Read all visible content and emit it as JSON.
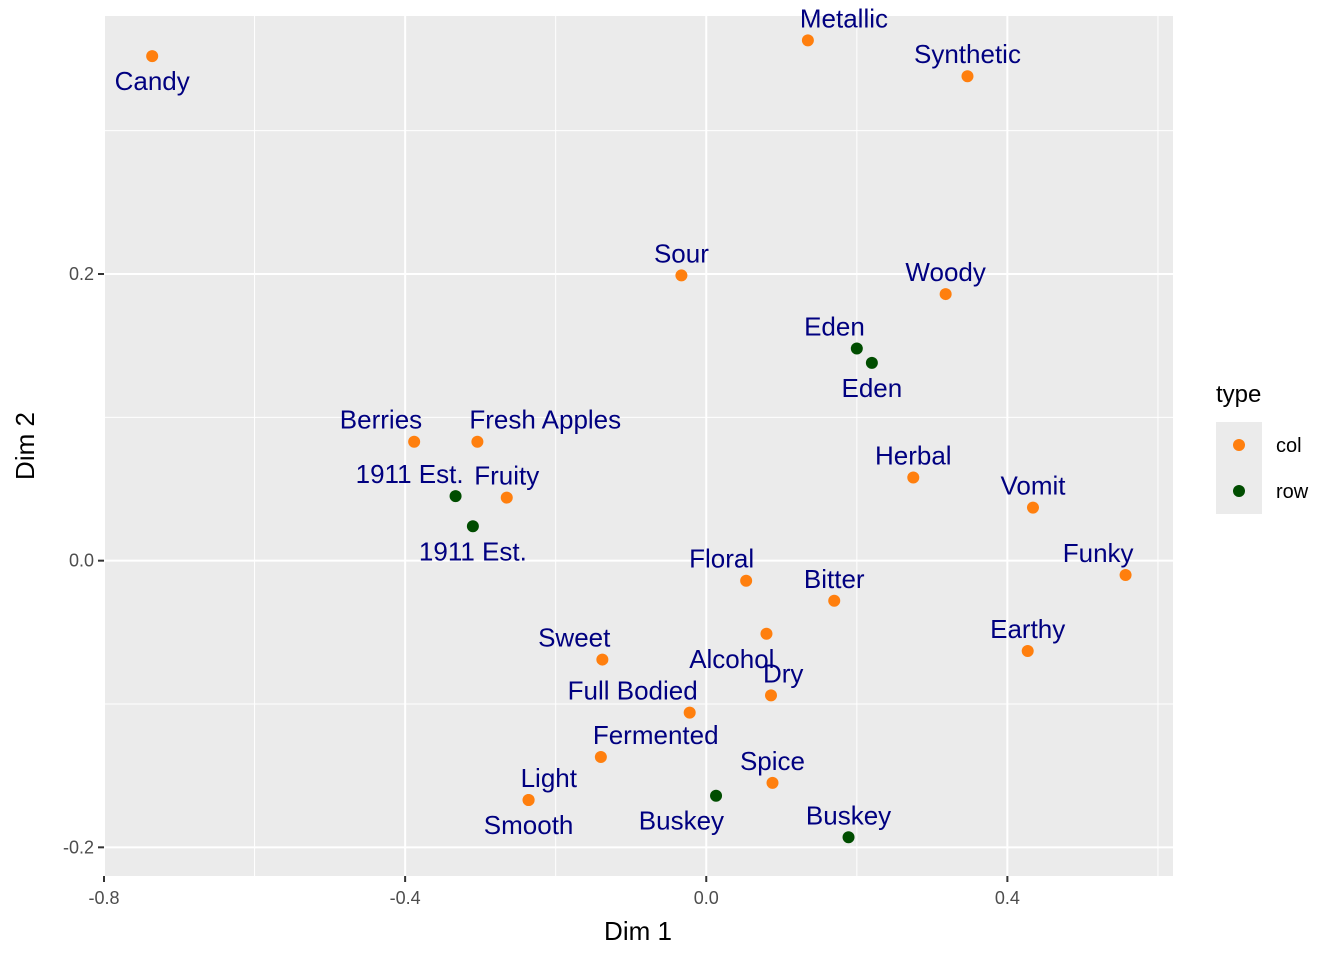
{
  "chart_data": {
    "type": "scatter",
    "xlabel": "Dim 1",
    "ylabel": "Dim 2",
    "xlim": [
      -0.8,
      0.62
    ],
    "ylim": [
      -0.22,
      0.38
    ],
    "x_ticks": [
      -0.8,
      -0.4,
      0.0,
      0.4
    ],
    "x_tick_labels": [
      "-0.8",
      "-0.4",
      "0.0",
      "0.4"
    ],
    "y_ticks": [
      -0.2,
      0.0,
      0.2
    ],
    "y_tick_labels": [
      "-0.2",
      "0.0",
      "0.2"
    ],
    "grid": true,
    "legend": {
      "title": "type",
      "position": "right",
      "entries": [
        {
          "name": "col",
          "color": "#FF7F0E"
        },
        {
          "name": "row",
          "color": "#004D00"
        }
      ]
    },
    "label_color": "#000080",
    "points": [
      {
        "label": "Candy",
        "x": -0.736,
        "y": 0.352,
        "type": "col",
        "label_pos": "below"
      },
      {
        "label": "Metallic",
        "x": 0.135,
        "y": 0.363,
        "type": "col",
        "label_pos": "above-right"
      },
      {
        "label": "Synthetic",
        "x": 0.347,
        "y": 0.338,
        "type": "col",
        "label_pos": "above"
      },
      {
        "label": "Sour",
        "x": -0.033,
        "y": 0.199,
        "type": "col",
        "label_pos": "above"
      },
      {
        "label": "Woody",
        "x": 0.318,
        "y": 0.186,
        "type": "col",
        "label_pos": "above"
      },
      {
        "label": "Berries",
        "x": -0.388,
        "y": 0.083,
        "type": "col",
        "label_pos": "above-left"
      },
      {
        "label": "Fresh Apples",
        "x": -0.304,
        "y": 0.083,
        "type": "col",
        "label_pos": "above-right"
      },
      {
        "label": "Fruity",
        "x": -0.265,
        "y": 0.044,
        "type": "col",
        "label_pos": "above"
      },
      {
        "label": "Herbal",
        "x": 0.275,
        "y": 0.058,
        "type": "col",
        "label_pos": "above"
      },
      {
        "label": "Vomit",
        "x": 0.434,
        "y": 0.037,
        "type": "col",
        "label_pos": "above"
      },
      {
        "label": "Floral",
        "x": 0.053,
        "y": -0.014,
        "type": "col",
        "label_pos": "above-left"
      },
      {
        "label": "Funky",
        "x": 0.557,
        "y": -0.01,
        "type": "col",
        "label_pos": "above-left"
      },
      {
        "label": "Bitter",
        "x": 0.17,
        "y": -0.028,
        "type": "col",
        "label_pos": "above"
      },
      {
        "label": "Alcohol",
        "x": 0.08,
        "y": -0.051,
        "type": "col",
        "label_pos": "below-left"
      },
      {
        "label": "Sweet",
        "x": -0.138,
        "y": -0.069,
        "type": "col",
        "label_pos": "above-left"
      },
      {
        "label": "Earthy",
        "x": 0.427,
        "y": -0.063,
        "type": "col",
        "label_pos": "above"
      },
      {
        "label": "Dry",
        "x": 0.086,
        "y": -0.094,
        "type": "col",
        "label_pos": "above-right"
      },
      {
        "label": "Full Bodied",
        "x": -0.022,
        "y": -0.106,
        "type": "col",
        "label_pos": "above-left"
      },
      {
        "label": "Fermented",
        "x": -0.14,
        "y": -0.137,
        "type": "col",
        "label_pos": "above-right"
      },
      {
        "label": "Spice",
        "x": 0.088,
        "y": -0.155,
        "type": "col",
        "label_pos": "above"
      },
      {
        "label": "Light",
        "x": -0.236,
        "y": -0.167,
        "type": "col",
        "label_pos": "above-right"
      },
      {
        "label": "Smooth",
        "x": -0.236,
        "y": -0.167,
        "type": "col",
        "label_pos": "below"
      },
      {
        "label": "Eden",
        "x": 0.2,
        "y": 0.148,
        "type": "row",
        "label_pos": "above-left"
      },
      {
        "label": "Eden",
        "x": 0.22,
        "y": 0.138,
        "type": "row",
        "label_pos": "below"
      },
      {
        "label": "1911 Est.",
        "x": -0.333,
        "y": 0.045,
        "type": "row",
        "label_pos": "above-left"
      },
      {
        "label": "1911 Est.",
        "x": -0.31,
        "y": 0.024,
        "type": "row",
        "label_pos": "below"
      },
      {
        "label": "Buskey",
        "x": 0.013,
        "y": -0.164,
        "type": "row",
        "label_pos": "below-left"
      },
      {
        "label": "Buskey",
        "x": 0.189,
        "y": -0.193,
        "type": "row",
        "label_pos": "above"
      }
    ]
  }
}
